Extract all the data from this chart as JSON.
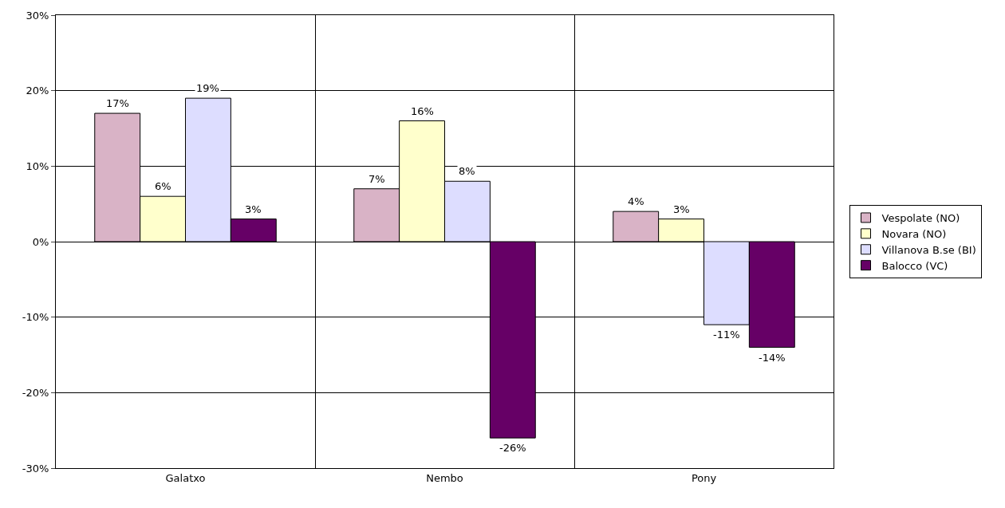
{
  "chart_data": {
    "type": "bar",
    "categories": [
      "Galatxo",
      "Nembo",
      "Pony"
    ],
    "series": [
      {
        "name": "Vespolate (NO)",
        "color": "#d9b3c6",
        "values": [
          17,
          7,
          4
        ],
        "value_labels": [
          "17%",
          "7%",
          "4%"
        ]
      },
      {
        "name": "Novara (NO)",
        "color": "#ffffcc",
        "values": [
          6,
          16,
          3
        ],
        "value_labels": [
          "6%",
          "16%",
          "3%"
        ]
      },
      {
        "name": "Villanova B.se (BI)",
        "color": "#ddddff",
        "values": [
          19,
          8,
          -11
        ],
        "value_labels": [
          "19%",
          "8%",
          "-11%"
        ]
      },
      {
        "name": "Balocco (VC)",
        "color": "#660066",
        "values": [
          3,
          -26,
          -14
        ],
        "value_labels": [
          "3%",
          "-26%",
          "-14%"
        ]
      }
    ],
    "ylim": [
      -30,
      30
    ],
    "yticks": [
      {
        "value": -30,
        "label": "-30%"
      },
      {
        "value": -20,
        "label": "-20%"
      },
      {
        "value": -10,
        "label": "-10%"
      },
      {
        "value": 0,
        "label": "0%"
      },
      {
        "value": 10,
        "label": "10%"
      },
      {
        "value": 20,
        "label": "20%"
      },
      {
        "value": 30,
        "label": "30%"
      }
    ],
    "grid": true,
    "legend": "right"
  }
}
